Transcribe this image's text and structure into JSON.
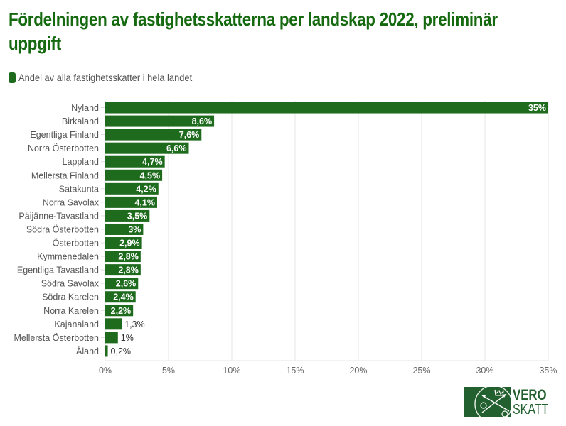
{
  "title": "Fördelningen av fastighetsskatterna per landskap 2022, preliminär uppgift",
  "logo": {
    "line1": "VERO",
    "line2": "SKATT"
  },
  "colors": {
    "bar": "#1e6b1e",
    "title": "#15690f",
    "grid": "#e6e6e6"
  },
  "chart_data": {
    "type": "bar",
    "orientation": "horizontal",
    "title": "Fördelningen av fastighetsskatterna per landskap 2022, preliminär uppgift",
    "legend": [
      "Andel av alla fastighetsskatter i hela landet"
    ],
    "legend_position": "top-left",
    "xlabel": "",
    "ylabel": "",
    "xlim": [
      0,
      35
    ],
    "grid": true,
    "x_ticks": [
      0,
      5,
      10,
      15,
      20,
      25,
      30,
      35
    ],
    "x_tick_labels": [
      "0%",
      "5%",
      "10%",
      "15%",
      "20%",
      "25%",
      "30%",
      "35%"
    ],
    "categories": [
      "Nyland",
      "Birkaland",
      "Egentliga Finland",
      "Norra Österbotten",
      "Lappland",
      "Mellersta Finland",
      "Satakunta",
      "Norra Savolax",
      "Päijänne-Tavastland",
      "Södra Österbotten",
      "Österbotten",
      "Kymmenedalen",
      "Egentliga Tavastland",
      "Södra Savolax",
      "Södra Karelen",
      "Norra Karelen",
      "Kajanaland",
      "Mellersta Österbotten",
      "Åland"
    ],
    "series": [
      {
        "name": "Andel av alla fastighetsskatter i hela landet",
        "values": [
          35,
          8.6,
          7.6,
          6.6,
          4.7,
          4.5,
          4.2,
          4.1,
          3.5,
          3,
          2.9,
          2.8,
          2.8,
          2.6,
          2.4,
          2.2,
          1.3,
          1,
          0.2
        ],
        "labels": [
          "35%",
          "8,6%",
          "7,6%",
          "6,6%",
          "4,7%",
          "4,5%",
          "4,2%",
          "4,1%",
          "3,5%",
          "3%",
          "2,9%",
          "2,8%",
          "2,8%",
          "2,6%",
          "2,4%",
          "2,2%",
          "1,3%",
          "1%",
          "0,2%"
        ]
      }
    ]
  }
}
